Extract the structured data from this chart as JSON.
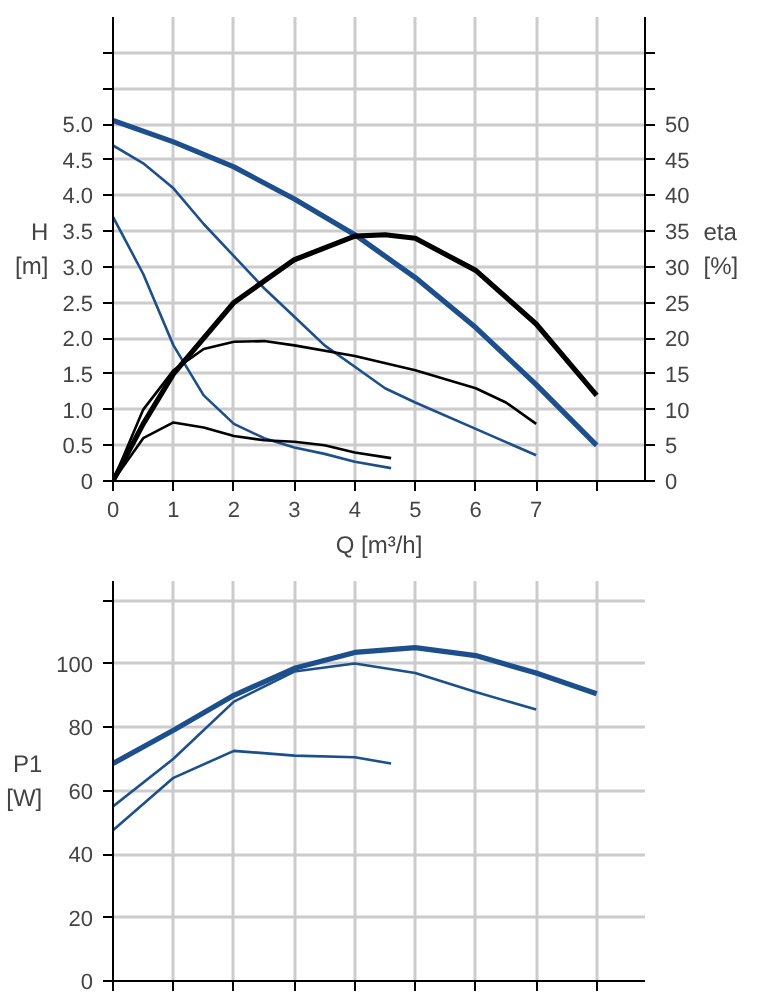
{
  "chart_data": [
    {
      "type": "line",
      "ylabel": "H [m]",
      "y2label": "eta [%]",
      "xlabel": "Q [m³/h]",
      "xlim": [
        0,
        8.8
      ],
      "xticks": [
        0,
        1,
        2,
        3,
        4,
        5,
        6,
        7,
        {
          "value": 8,
          "label": null
        }
      ],
      "ylim": [
        0,
        6.5
      ],
      "yticks": [
        0.0,
        {
          "value": 0.5,
          "label": "0.5"
        },
        {
          "value": 1,
          "label": "1.0"
        },
        {
          "value": 1.5,
          "label": "1.5"
        },
        {
          "value": 2,
          "label": "2.0"
        },
        {
          "value": 2.5,
          "label": "2.5"
        },
        {
          "value": 3,
          "label": "3.0"
        },
        {
          "value": 3.5,
          "label": "3.5"
        },
        {
          "value": 4,
          "label": "4.0"
        },
        {
          "value": 4.5,
          "label": "4.5"
        },
        {
          "value": 5,
          "label": "5.0"
        },
        {
          "value": 5.5,
          "label": null
        },
        {
          "value": 6,
          "label": null
        }
      ],
      "y2lim": [
        0,
        65
      ],
      "y2ticks": [
        0,
        5,
        10,
        15,
        20,
        25,
        30,
        35,
        40,
        45,
        50,
        {
          "value": 55,
          "label": null
        },
        {
          "value": 60,
          "label": null
        }
      ],
      "grid": true,
      "series": [
        {
          "color": "#1c4f8c",
          "x": [
            0,
            1,
            2,
            3,
            4,
            5,
            6,
            7,
            8
          ],
          "values": [
            5.05,
            4.75,
            4.4,
            3.95,
            3.45,
            2.85,
            2.15,
            1.35,
            0.5
          ]
        },
        {
          "color": "#1c4f8c",
          "x": [
            0,
            0.5,
            1,
            1.5,
            2,
            2.5,
            3,
            3.5,
            4,
            4.5,
            5,
            6,
            7
          ],
          "values": [
            4.7,
            4.45,
            4.1,
            3.6,
            3.15,
            2.7,
            2.3,
            1.9,
            1.6,
            1.3,
            1.1,
            0.73,
            0.36
          ]
        },
        {
          "color": "#1c4f8c",
          "x": [
            0,
            0.5,
            1,
            1.5,
            2,
            2.5,
            3,
            3.5,
            4,
            4.6
          ],
          "values": [
            3.7,
            2.9,
            1.9,
            1.2,
            0.8,
            0.6,
            0.47,
            0.38,
            0.27,
            0.18
          ]
        },
        {
          "color": "#000000",
          "axis": "y2",
          "x": [
            0,
            0.5,
            1,
            2,
            3,
            4,
            4.5,
            5,
            6,
            7,
            8
          ],
          "values": [
            0,
            8,
            15,
            25,
            31,
            34.3,
            34.5,
            34,
            29.5,
            22,
            12
          ]
        },
        {
          "color": "#000000",
          "axis": "y2",
          "x": [
            0,
            0.5,
            1,
            1.5,
            2,
            2.5,
            3,
            4,
            5,
            6,
            6.5,
            7
          ],
          "values": [
            0,
            10,
            15.5,
            18.5,
            19.5,
            19.6,
            19,
            17.5,
            15.5,
            13,
            11,
            8
          ]
        },
        {
          "color": "#000000",
          "axis": "y2",
          "x": [
            0,
            0.5,
            1,
            1.5,
            2,
            2.5,
            3,
            3.5,
            4,
            4.6
          ],
          "values": [
            0,
            6,
            8.2,
            7.5,
            6.3,
            5.7,
            5.5,
            5,
            4,
            3.2
          ]
        }
      ]
    },
    {
      "type": "line",
      "ylabel": "P1 [W]",
      "xlim": [
        0,
        8.8
      ],
      "xticks": [
        {
          "value": 0,
          "label": null
        },
        {
          "value": 1,
          "label": null
        },
        {
          "value": 2,
          "label": null
        },
        {
          "value": 3,
          "label": null
        },
        {
          "value": 4,
          "label": null
        },
        {
          "value": 5,
          "label": null
        },
        {
          "value": 6,
          "label": null
        },
        {
          "value": 7,
          "label": null
        },
        {
          "value": 8,
          "label": null
        }
      ],
      "ylim": [
        0,
        126
      ],
      "yticks": [
        0,
        20,
        40,
        60,
        80,
        100,
        {
          "value": 120,
          "label": null
        }
      ],
      "tick_labels": "y",
      "grid": true,
      "series": [
        {
          "color": "#1c4f8c",
          "x": [
            0,
            1,
            2,
            3,
            4,
            5,
            6,
            7,
            8
          ],
          "values": [
            68.5,
            79,
            90,
            98.5,
            103.5,
            105,
            102.5,
            97,
            90.5
          ]
        },
        {
          "color": "#1c4f8c",
          "x": [
            0,
            1,
            2,
            3,
            4,
            5,
            6,
            7
          ],
          "values": [
            55,
            70,
            88,
            97.5,
            100,
            97,
            91,
            85.5
          ]
        },
        {
          "color": "#1c4f8c",
          "x": [
            0,
            1,
            2,
            3,
            4,
            4.6
          ],
          "values": [
            47.5,
            64,
            72.5,
            71,
            70.5,
            68.5
          ]
        }
      ]
    }
  ]
}
